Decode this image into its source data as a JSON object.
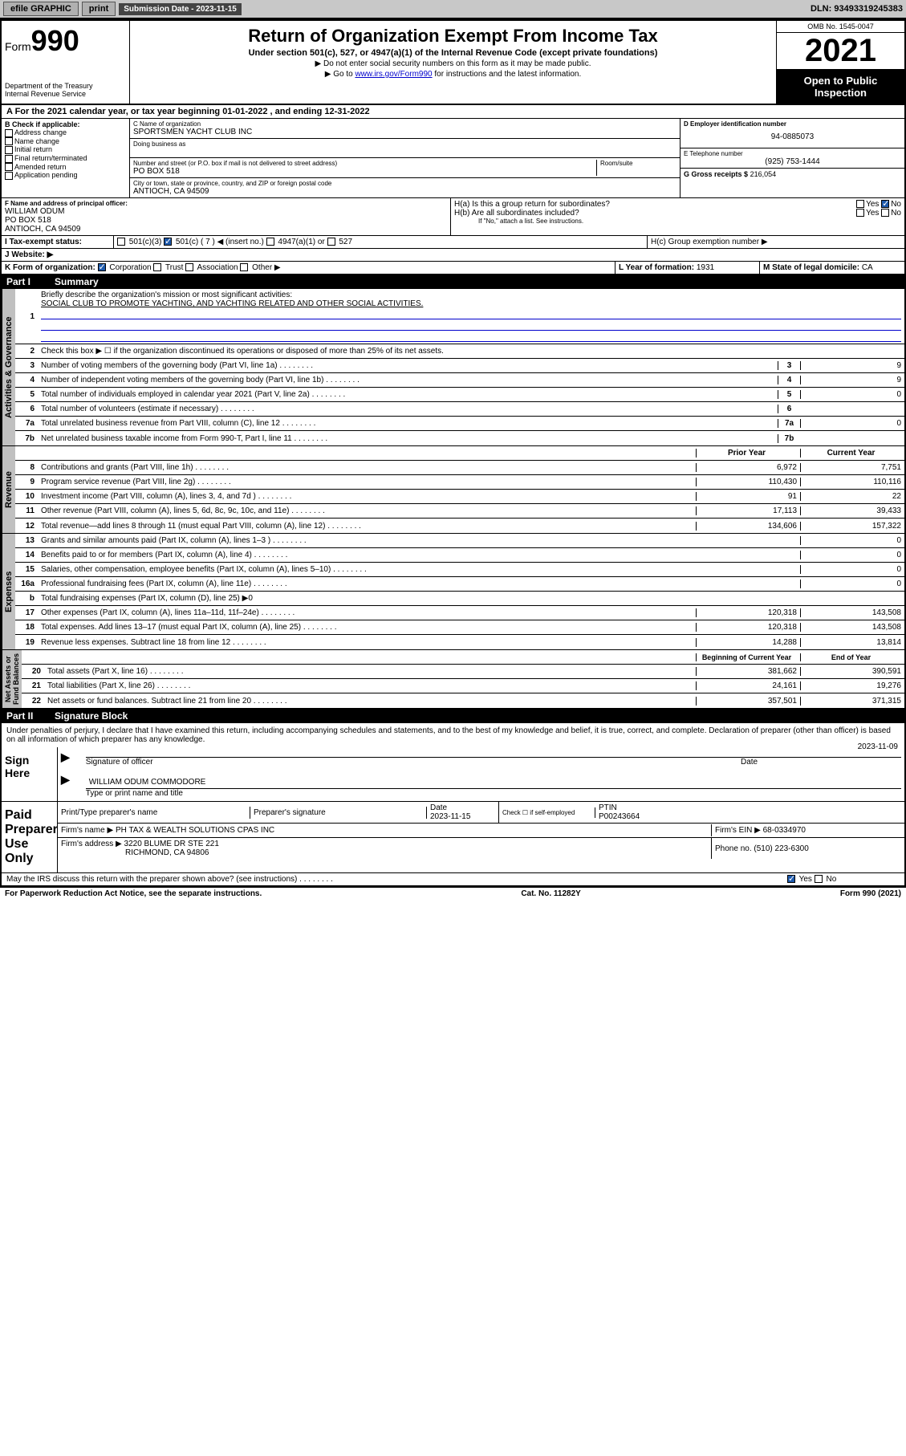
{
  "topbar": {
    "efile": "efile GRAPHIC",
    "print": "print",
    "sub_label": "Submission Date - 2023-11-15",
    "dln": "DLN: 93493319245383"
  },
  "header": {
    "form_word": "Form",
    "form_num": "990",
    "dept": "Department of the Treasury\nInternal Revenue Service",
    "title": "Return of Organization Exempt From Income Tax",
    "subtitle": "Under section 501(c), 527, or 4947(a)(1) of the Internal Revenue Code (except private foundations)",
    "note1": "▶ Do not enter social security numbers on this form as it may be made public.",
    "note2_pre": "▶ Go to ",
    "note2_link": "www.irs.gov/Form990",
    "note2_post": " for instructions and the latest information.",
    "omb": "OMB No. 1545-0047",
    "year": "2021",
    "open": "Open to Public Inspection"
  },
  "period": {
    "text": "A For the 2021 calendar year, or tax year beginning 01-01-2022    , and ending 12-31-2022"
  },
  "boxB": {
    "title": "B Check if applicable:",
    "items": [
      "Address change",
      "Name change",
      "Initial return",
      "Final return/terminated",
      "Amended return",
      "Application pending"
    ]
  },
  "boxC": {
    "name_label": "C Name of organization",
    "name": "SPORTSMEN YACHT CLUB INC",
    "dba_label": "Doing business as",
    "street_label": "Number and street (or P.O. box if mail is not delivered to street address)",
    "room_label": "Room/suite",
    "street": "PO BOX 518",
    "city_label": "City or town, state or province, country, and ZIP or foreign postal code",
    "city": "ANTIOCH, CA  94509"
  },
  "boxD": {
    "label": "D Employer identification number",
    "val": "94-0885073"
  },
  "boxE": {
    "label": "E Telephone number",
    "val": "(925) 753-1444"
  },
  "boxG": {
    "label": "G Gross receipts $",
    "val": "216,054"
  },
  "boxF": {
    "label": "F Name and address of principal officer:",
    "name": "WILLIAM ODUM",
    "street": "PO BOX 518",
    "city": "ANTIOCH, CA  94509"
  },
  "boxH": {
    "a": "H(a)  Is this a group return for subordinates?",
    "b": "H(b)  Are all subordinates included?",
    "note": "If \"No,\" attach a list. See instructions.",
    "c": "H(c)  Group exemption number ▶"
  },
  "boxI": {
    "label": "Tax-exempt status:",
    "c7": "501(c) ( 7 ) ◀ (insert no.)"
  },
  "boxJ": {
    "label": "Website: ▶"
  },
  "boxK": {
    "label": "K Form of organization:",
    "corp": "Corporation",
    "trust": "Trust",
    "assoc": "Association",
    "other": "Other ▶"
  },
  "boxL": {
    "label": "L Year of formation:",
    "val": "1931"
  },
  "boxM": {
    "label": "M State of legal domicile:",
    "val": "CA"
  },
  "part1": {
    "hdr": "Summary",
    "l1": "Briefly describe the organization's mission or most significant activities:",
    "mission": "SOCIAL CLUB TO PROMOTE YACHTING, AND YACHTING RELATED AND OTHER SOCIAL ACTIVITIES.",
    "l2": "Check this box ▶ ☐  if the organization discontinued its operations or disposed of more than 25% of its net assets.",
    "governance": [
      {
        "n": "3",
        "t": "Number of voting members of the governing body (Part VI, line 1a)",
        "v": "9"
      },
      {
        "n": "4",
        "t": "Number of independent voting members of the governing body (Part VI, line 1b)",
        "v": "9"
      },
      {
        "n": "5",
        "t": "Total number of individuals employed in calendar year 2021 (Part V, line 2a)",
        "v": "0"
      },
      {
        "n": "6",
        "t": "Total number of volunteers (estimate if necessary)",
        "v": ""
      },
      {
        "n": "7a",
        "t": "Total unrelated business revenue from Part VIII, column (C), line 12",
        "v": "0"
      },
      {
        "n": "7b",
        "t": "Net unrelated business taxable income from Form 990-T, Part I, line 11",
        "v": ""
      }
    ],
    "col_prior": "Prior Year",
    "col_curr": "Current Year",
    "revenue": [
      {
        "n": "8",
        "t": "Contributions and grants (Part VIII, line 1h)",
        "p": "6,972",
        "c": "7,751"
      },
      {
        "n": "9",
        "t": "Program service revenue (Part VIII, line 2g)",
        "p": "110,430",
        "c": "110,116"
      },
      {
        "n": "10",
        "t": "Investment income (Part VIII, column (A), lines 3, 4, and 7d )",
        "p": "91",
        "c": "22"
      },
      {
        "n": "11",
        "t": "Other revenue (Part VIII, column (A), lines 5, 6d, 8c, 9c, 10c, and 11e)",
        "p": "17,113",
        "c": "39,433"
      },
      {
        "n": "12",
        "t": "Total revenue—add lines 8 through 11 (must equal Part VIII, column (A), line 12)",
        "p": "134,606",
        "c": "157,322"
      }
    ],
    "expenses": [
      {
        "n": "13",
        "t": "Grants and similar amounts paid (Part IX, column (A), lines 1–3 )",
        "p": "",
        "c": "0"
      },
      {
        "n": "14",
        "t": "Benefits paid to or for members (Part IX, column (A), line 4)",
        "p": "",
        "c": "0"
      },
      {
        "n": "15",
        "t": "Salaries, other compensation, employee benefits (Part IX, column (A), lines 5–10)",
        "p": "",
        "c": "0"
      },
      {
        "n": "16a",
        "t": "Professional fundraising fees (Part IX, column (A), line 11e)",
        "p": "",
        "c": "0"
      },
      {
        "n": "b",
        "t": "Total fundraising expenses (Part IX, column (D), line 25) ▶0",
        "p": "SHADE",
        "c": "SHADE"
      },
      {
        "n": "17",
        "t": "Other expenses (Part IX, column (A), lines 11a–11d, 11f–24e)",
        "p": "120,318",
        "c": "143,508"
      },
      {
        "n": "18",
        "t": "Total expenses. Add lines 13–17 (must equal Part IX, column (A), line 25)",
        "p": "120,318",
        "c": "143,508"
      },
      {
        "n": "19",
        "t": "Revenue less expenses. Subtract line 18 from line 12",
        "p": "14,288",
        "c": "13,814"
      }
    ],
    "col_begin": "Beginning of Current Year",
    "col_end": "End of Year",
    "netassets": [
      {
        "n": "20",
        "t": "Total assets (Part X, line 16)",
        "p": "381,662",
        "c": "390,591"
      },
      {
        "n": "21",
        "t": "Total liabilities (Part X, line 26)",
        "p": "24,161",
        "c": "19,276"
      },
      {
        "n": "22",
        "t": "Net assets or fund balances. Subtract line 21 from line 20",
        "p": "357,501",
        "c": "371,315"
      }
    ]
  },
  "part2": {
    "hdr": "Signature Block",
    "jurat": "Under penalties of perjury, I declare that I have examined this return, including accompanying schedules and statements, and to the best of my knowledge and belief, it is true, correct, and complete. Declaration of preparer (other than officer) is based on all information of which preparer has any knowledge.",
    "sign_here": "Sign Here",
    "sig_officer": "Signature of officer",
    "sig_date": "2023-11-09",
    "date_lbl": "Date",
    "officer_name": "WILLIAM ODUM  COMMODORE",
    "name_lbl": "Type or print name and title",
    "paid": "Paid Preparer Use Only",
    "prep_name_lbl": "Print/Type preparer's name",
    "prep_sig_lbl": "Preparer's signature",
    "prep_date_lbl": "Date",
    "prep_date": "2023-11-15",
    "check_self": "Check ☐ if self-employed",
    "ptin_lbl": "PTIN",
    "ptin": "P00243664",
    "firm_name_lbl": "Firm's name    ▶",
    "firm_name": "PH TAX & WEALTH SOLUTIONS CPAS INC",
    "firm_ein_lbl": "Firm's EIN ▶",
    "firm_ein": "68-0334970",
    "firm_addr_lbl": "Firm's address ▶",
    "firm_addr1": "3220 BLUME DR STE 221",
    "firm_addr2": "RICHMOND, CA  94806",
    "phone_lbl": "Phone no.",
    "phone": "(510) 223-6300",
    "discuss": "May the IRS discuss this return with the preparer shown above? (see instructions)"
  },
  "footer": {
    "left": "For Paperwork Reduction Act Notice, see the separate instructions.",
    "mid": "Cat. No. 11282Y",
    "right": "Form 990 (2021)"
  }
}
